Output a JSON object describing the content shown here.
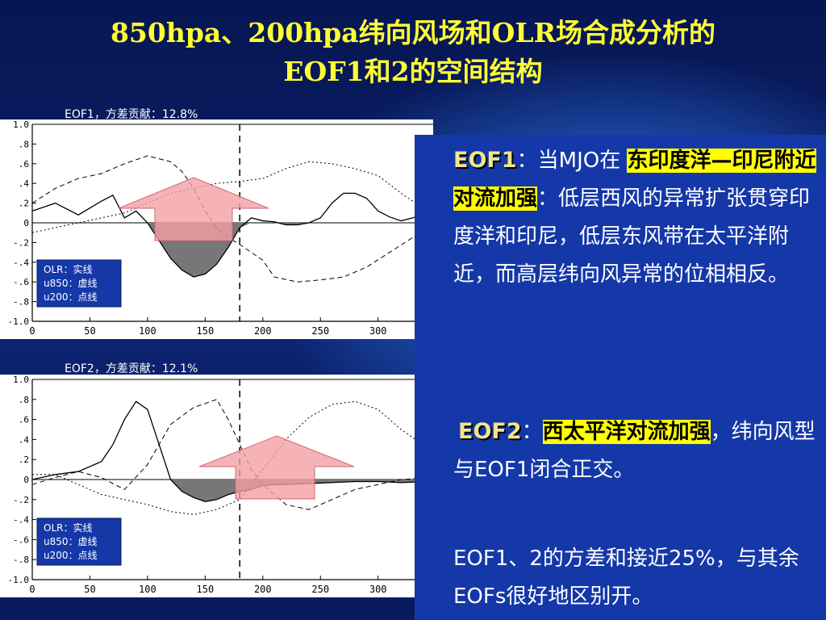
{
  "slide": {
    "title_line1": "850hpa、200hpa纬向风场和OLR场合成分析的",
    "title_line2": "EOF1和2的空间结构"
  },
  "charts_meta": [
    {
      "caption": "EOF1，方差贡献：12.8%",
      "legend": [
        "OLR：实线",
        "u850：虚线",
        "u200：点线"
      ]
    },
    {
      "caption": "EOF2，方差贡献：12.1%",
      "legend": [
        "OLR：实线",
        "u850：虚线",
        "u200：点线"
      ]
    }
  ],
  "colors": {
    "background": "#0a1c5e",
    "title": "#ffff33",
    "panel": "#1538a8",
    "highlight": "#ffff00",
    "keyword": "#f0e58a",
    "fill_negative": "#777777",
    "arrow": "#f4a0a4"
  },
  "text_panel": {
    "eof1_label": "EOF1",
    "eof1_sep": "：当MJO在 ",
    "eof1_highlight": "东印度洋—印尼附近对流加强",
    "eof1_sep2": "：",
    "eof1_body": "低层西风的异常扩张贯穿印度洋和印尼，低层东风带在太平洋附近，而高层纬向风异常的位相相反。",
    "eof2_label": "EOF2",
    "eof2_sep": "：",
    "eof2_highlight": "西太平洋对流加强",
    "eof2_body": "，纬向风型与EOF1闭合正交。",
    "summary": "EOF1、2的方差和接近25%，与其余EOFs很好地区别开。"
  },
  "chart_data": [
    {
      "type": "line",
      "title": "EOF1，方差贡献：12.8%",
      "ylim": [
        -1.0,
        1.0
      ],
      "yticks": [
        "1.0",
        ".8",
        ".6",
        ".4",
        ".2",
        "0",
        "-.2",
        "-.4",
        "-.6",
        "-.8",
        "-1.0"
      ],
      "xticks": [
        "0",
        "50",
        "100",
        "150",
        "200",
        "250",
        "300",
        "3"
      ],
      "xlim": [
        0,
        345
      ],
      "vline": 180,
      "grid": false,
      "legend_position": "bottom-left",
      "series": [
        {
          "name": "OLR",
          "style": "solid",
          "x": [
            0,
            20,
            40,
            60,
            70,
            80,
            90,
            100,
            110,
            120,
            130,
            140,
            150,
            160,
            170,
            180,
            190,
            200,
            210,
            220,
            230,
            240,
            250,
            260,
            270,
            280,
            290,
            300,
            310,
            320,
            330,
            345
          ],
          "y": [
            0.12,
            0.2,
            0.08,
            0.22,
            0.28,
            0.05,
            0.12,
            0.0,
            -0.18,
            -0.36,
            -0.48,
            -0.55,
            -0.52,
            -0.42,
            -0.25,
            -0.05,
            0.05,
            0.02,
            0.01,
            -0.02,
            -0.02,
            0.0,
            0.05,
            0.2,
            0.3,
            0.3,
            0.25,
            0.12,
            0.06,
            0.02,
            0.05,
            0.1
          ]
        },
        {
          "name": "u850",
          "style": "dashed",
          "x": [
            0,
            20,
            40,
            60,
            80,
            100,
            120,
            130,
            140,
            150,
            160,
            170,
            180,
            190,
            200,
            210,
            230,
            250,
            270,
            290,
            310,
            330,
            345
          ],
          "y": [
            0.2,
            0.35,
            0.45,
            0.5,
            0.6,
            0.68,
            0.62,
            0.52,
            0.35,
            0.12,
            -0.05,
            -0.15,
            -0.22,
            -0.3,
            -0.38,
            -0.55,
            -0.6,
            -0.58,
            -0.55,
            -0.45,
            -0.3,
            -0.15,
            -0.1
          ]
        },
        {
          "name": "u200",
          "style": "dotted",
          "x": [
            0,
            20,
            40,
            60,
            80,
            100,
            120,
            140,
            160,
            180,
            200,
            220,
            240,
            260,
            280,
            300,
            320,
            345
          ],
          "y": [
            -0.1,
            -0.05,
            0.0,
            0.05,
            0.1,
            0.2,
            0.3,
            0.35,
            0.4,
            0.42,
            0.45,
            0.55,
            0.62,
            0.6,
            0.55,
            0.48,
            0.3,
            0.1
          ]
        }
      ]
    },
    {
      "type": "line",
      "title": "EOF2，方差贡献：12.1%",
      "ylim": [
        -1.0,
        1.0
      ],
      "yticks": [
        "1.0",
        ".8",
        ".6",
        ".4",
        ".2",
        "0",
        "-.2",
        "-.4",
        "-.6",
        "-.8",
        "-1.0"
      ],
      "xticks": [
        "0",
        "50",
        "100",
        "150",
        "200",
        "250",
        "300",
        "3"
      ],
      "xlim": [
        0,
        345
      ],
      "vline": 180,
      "grid": false,
      "legend_position": "bottom-left",
      "series": [
        {
          "name": "OLR",
          "style": "solid",
          "x": [
            0,
            20,
            40,
            60,
            70,
            80,
            90,
            100,
            110,
            120,
            130,
            140,
            150,
            160,
            170,
            180,
            190,
            200,
            210,
            220,
            240,
            260,
            280,
            300,
            320,
            345
          ],
          "y": [
            0.0,
            0.05,
            0.08,
            0.18,
            0.35,
            0.6,
            0.78,
            0.7,
            0.35,
            0.0,
            -0.12,
            -0.18,
            -0.22,
            -0.2,
            -0.15,
            -0.12,
            -0.1,
            -0.06,
            -0.05,
            -0.05,
            -0.04,
            -0.03,
            -0.02,
            -0.02,
            -0.03,
            -0.02
          ]
        },
        {
          "name": "u850",
          "style": "dashed",
          "x": [
            0,
            20,
            40,
            60,
            80,
            100,
            120,
            140,
            160,
            170,
            180,
            190,
            200,
            220,
            240,
            260,
            280,
            300,
            320,
            345
          ],
          "y": [
            -0.05,
            0.02,
            0.08,
            0.02,
            -0.1,
            0.15,
            0.55,
            0.72,
            0.8,
            0.6,
            0.35,
            0.1,
            -0.05,
            -0.25,
            -0.3,
            -0.2,
            -0.1,
            -0.05,
            0.0,
            0.02
          ]
        },
        {
          "name": "u200",
          "style": "dotted",
          "x": [
            0,
            20,
            40,
            60,
            80,
            100,
            120,
            140,
            160,
            180,
            200,
            220,
            240,
            260,
            280,
            300,
            320,
            345
          ],
          "y": [
            0.05,
            0.05,
            -0.05,
            -0.15,
            -0.2,
            -0.25,
            -0.32,
            -0.35,
            -0.3,
            -0.2,
            0.1,
            0.4,
            0.62,
            0.75,
            0.78,
            0.7,
            0.5,
            0.3
          ]
        }
      ]
    }
  ]
}
